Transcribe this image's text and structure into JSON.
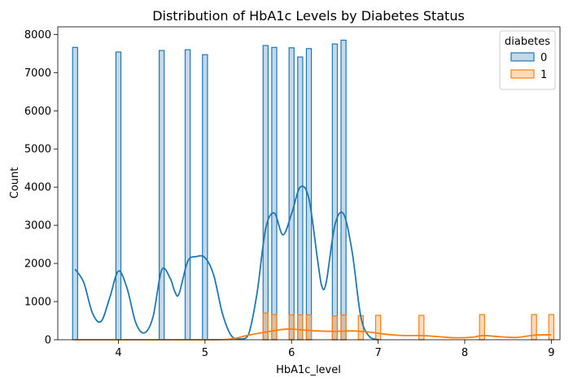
{
  "chart_data": {
    "type": "histogram",
    "title": "Distribution of HbA1c Levels by Diabetes Status",
    "xlabel": "HbA1c_level",
    "ylabel": "Count",
    "xlim": [
      3.3,
      9.1
    ],
    "ylim": [
      0,
      8200
    ],
    "xticks": [
      4,
      5,
      6,
      7,
      8,
      9
    ],
    "yticks": [
      0,
      1000,
      2000,
      3000,
      4000,
      5000,
      6000,
      7000,
      8000
    ],
    "bin_width": 0.058,
    "legend": {
      "title": "diabetes",
      "placement": "top-right",
      "entries": [
        "0",
        "1"
      ]
    },
    "series": [
      {
        "name": "0",
        "color": "#1f77b4",
        "bars": [
          {
            "x": 3.5,
            "count": 7660
          },
          {
            "x": 4.0,
            "count": 7540
          },
          {
            "x": 4.5,
            "count": 7580
          },
          {
            "x": 4.8,
            "count": 7600
          },
          {
            "x": 5.0,
            "count": 7470
          },
          {
            "x": 5.7,
            "count": 7710
          },
          {
            "x": 5.8,
            "count": 7660
          },
          {
            "x": 6.0,
            "count": 7650
          },
          {
            "x": 6.1,
            "count": 7410
          },
          {
            "x": 6.2,
            "count": 7630
          },
          {
            "x": 6.5,
            "count": 7750
          },
          {
            "x": 6.6,
            "count": 7850
          }
        ],
        "kde": [
          [
            3.5,
            1850
          ],
          [
            3.6,
            1500
          ],
          [
            3.7,
            700
          ],
          [
            3.8,
            480
          ],
          [
            3.9,
            1100
          ],
          [
            4.0,
            1800
          ],
          [
            4.1,
            1350
          ],
          [
            4.2,
            450
          ],
          [
            4.3,
            180
          ],
          [
            4.4,
            600
          ],
          [
            4.5,
            1830
          ],
          [
            4.6,
            1600
          ],
          [
            4.65,
            1270
          ],
          [
            4.7,
            1200
          ],
          [
            4.8,
            2050
          ],
          [
            4.9,
            2180
          ],
          [
            5.0,
            2150
          ],
          [
            5.1,
            1700
          ],
          [
            5.2,
            700
          ],
          [
            5.3,
            120
          ],
          [
            5.4,
            20
          ],
          [
            5.5,
            120
          ],
          [
            5.6,
            1200
          ],
          [
            5.7,
            2900
          ],
          [
            5.8,
            3320
          ],
          [
            5.9,
            2750
          ],
          [
            6.0,
            3300
          ],
          [
            6.1,
            4000
          ],
          [
            6.2,
            3700
          ],
          [
            6.3,
            2100
          ],
          [
            6.35,
            1400
          ],
          [
            6.4,
            1500
          ],
          [
            6.5,
            3000
          ],
          [
            6.6,
            3300
          ],
          [
            6.7,
            2300
          ],
          [
            6.8,
            600
          ],
          [
            6.9,
            80
          ],
          [
            7.0,
            0
          ]
        ]
      },
      {
        "name": "1",
        "color": "#ff7f0e",
        "bars": [
          {
            "x": 5.7,
            "count": 700
          },
          {
            "x": 5.8,
            "count": 660
          },
          {
            "x": 6.0,
            "count": 650
          },
          {
            "x": 6.1,
            "count": 650
          },
          {
            "x": 6.2,
            "count": 650
          },
          {
            "x": 6.5,
            "count": 620
          },
          {
            "x": 6.6,
            "count": 650
          },
          {
            "x": 6.8,
            "count": 630
          },
          {
            "x": 7.0,
            "count": 640
          },
          {
            "x": 7.5,
            "count": 640
          },
          {
            "x": 8.2,
            "count": 660
          },
          {
            "x": 8.8,
            "count": 660
          },
          {
            "x": 9.0,
            "count": 660
          }
        ],
        "kde": [
          [
            3.5,
            0
          ],
          [
            5.0,
            0
          ],
          [
            5.3,
            20
          ],
          [
            5.5,
            120
          ],
          [
            5.7,
            200
          ],
          [
            5.9,
            270
          ],
          [
            6.0,
            280
          ],
          [
            6.1,
            260
          ],
          [
            6.3,
            230
          ],
          [
            6.5,
            220
          ],
          [
            6.7,
            230
          ],
          [
            6.9,
            200
          ],
          [
            7.1,
            140
          ],
          [
            7.3,
            110
          ],
          [
            7.5,
            110
          ],
          [
            7.7,
            80
          ],
          [
            7.9,
            50
          ],
          [
            8.1,
            70
          ],
          [
            8.2,
            110
          ],
          [
            8.4,
            80
          ],
          [
            8.6,
            60
          ],
          [
            8.8,
            120
          ],
          [
            9.0,
            130
          ]
        ]
      }
    ]
  }
}
